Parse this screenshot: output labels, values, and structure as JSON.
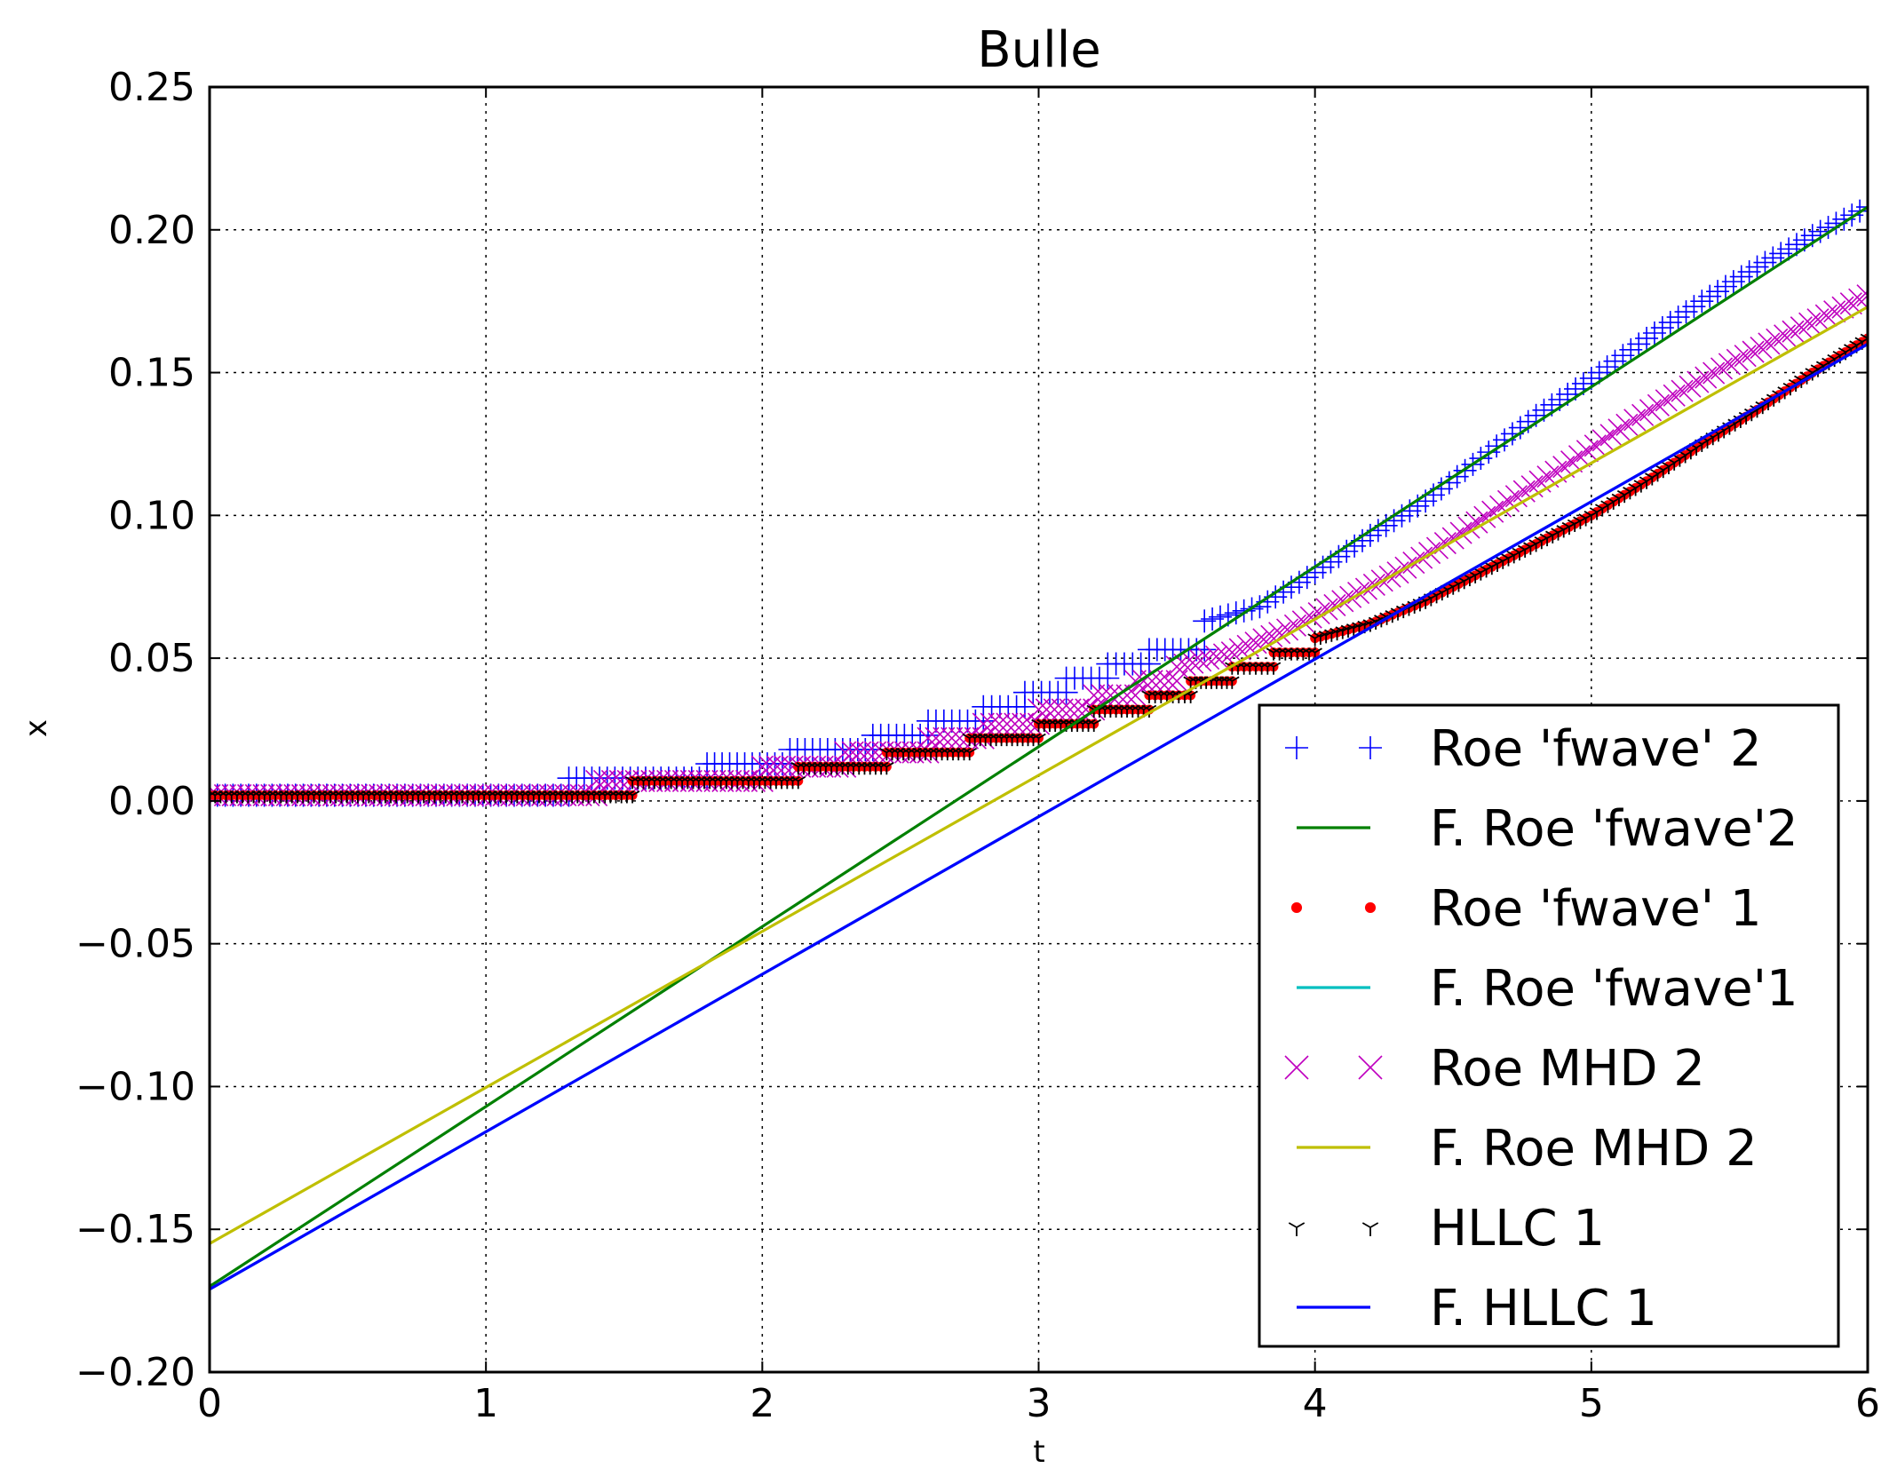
{
  "chart_data": {
    "type": "line",
    "title": "Bulle",
    "xlabel": "t",
    "ylabel": "x",
    "xlim": [
      0,
      6
    ],
    "ylim": [
      -0.2,
      0.25
    ],
    "xticks": [
      "0",
      "1",
      "2",
      "3",
      "4",
      "5",
      "6"
    ],
    "yticks": [
      "0.25",
      "0.20",
      "0.15",
      "0.10",
      "0.05",
      "0.00",
      "−0.05",
      "−0.10",
      "−0.15",
      "−0.20"
    ],
    "grid": true,
    "legend_position": "lower right",
    "series": [
      {
        "name": "Roe 'fwave' 2",
        "kind": "markers",
        "marker": "plus",
        "color": "#0000ff",
        "points": [
          [
            0,
            0.002
          ],
          [
            1.3,
            0.002
          ],
          [
            1.3,
            0.008
          ],
          [
            1.8,
            0.008
          ],
          [
            1.8,
            0.013
          ],
          [
            2.1,
            0.013
          ],
          [
            2.1,
            0.018
          ],
          [
            2.4,
            0.018
          ],
          [
            2.4,
            0.023
          ],
          [
            2.6,
            0.023
          ],
          [
            2.6,
            0.028
          ],
          [
            2.8,
            0.028
          ],
          [
            2.8,
            0.033
          ],
          [
            2.95,
            0.033
          ],
          [
            2.95,
            0.038
          ],
          [
            3.1,
            0.038
          ],
          [
            3.1,
            0.043
          ],
          [
            3.25,
            0.043
          ],
          [
            3.25,
            0.048
          ],
          [
            3.4,
            0.048
          ],
          [
            3.4,
            0.053
          ],
          [
            3.6,
            0.053
          ],
          [
            3.6,
            0.063
          ],
          [
            3.8,
            0.068
          ],
          [
            4.0,
            0.08
          ],
          [
            4.2,
            0.093
          ],
          [
            4.4,
            0.105
          ],
          [
            4.6,
            0.12
          ],
          [
            4.8,
            0.135
          ],
          [
            5.0,
            0.148
          ],
          [
            5.2,
            0.162
          ],
          [
            5.4,
            0.175
          ],
          [
            5.6,
            0.187
          ],
          [
            5.8,
            0.198
          ],
          [
            6.0,
            0.208
          ]
        ]
      },
      {
        "name": "F. Roe 'fwave'2",
        "kind": "line",
        "color": "#008000",
        "x": [
          0,
          6
        ],
        "y": [
          -0.17,
          0.208
        ]
      },
      {
        "name": "Roe 'fwave' 1",
        "kind": "markers",
        "marker": "dot",
        "color": "#ff0000",
        "points": [
          [
            0,
            0.002
          ],
          [
            1.53,
            0.002
          ],
          [
            1.53,
            0.007
          ],
          [
            2.13,
            0.007
          ],
          [
            2.13,
            0.012
          ],
          [
            2.45,
            0.012
          ],
          [
            2.45,
            0.017
          ],
          [
            2.75,
            0.017
          ],
          [
            2.75,
            0.022
          ],
          [
            3.0,
            0.022
          ],
          [
            3.0,
            0.027
          ],
          [
            3.2,
            0.027
          ],
          [
            3.2,
            0.032
          ],
          [
            3.4,
            0.032
          ],
          [
            3.4,
            0.037
          ],
          [
            3.55,
            0.037
          ],
          [
            3.55,
            0.042
          ],
          [
            3.7,
            0.042
          ],
          [
            3.7,
            0.047
          ],
          [
            3.85,
            0.047
          ],
          [
            3.85,
            0.052
          ],
          [
            4.0,
            0.052
          ],
          [
            4.0,
            0.057
          ],
          [
            4.2,
            0.062
          ],
          [
            4.4,
            0.07
          ],
          [
            4.6,
            0.08
          ],
          [
            4.8,
            0.09
          ],
          [
            5.0,
            0.1
          ],
          [
            5.2,
            0.112
          ],
          [
            5.4,
            0.125
          ],
          [
            5.6,
            0.137
          ],
          [
            5.8,
            0.15
          ],
          [
            6.0,
            0.162
          ]
        ]
      },
      {
        "name": "F. Roe 'fwave'1",
        "kind": "line",
        "color": "#00bfbf",
        "x": [
          0,
          6
        ],
        "y": [
          -0.171,
          0.16
        ]
      },
      {
        "name": "Roe MHD 2",
        "kind": "markers",
        "marker": "x",
        "color": "#bf00bf",
        "points": [
          [
            0,
            0.002
          ],
          [
            1.4,
            0.002
          ],
          [
            1.4,
            0.007
          ],
          [
            2.0,
            0.007
          ],
          [
            2.0,
            0.012
          ],
          [
            2.3,
            0.012
          ],
          [
            2.3,
            0.017
          ],
          [
            2.6,
            0.017
          ],
          [
            2.6,
            0.022
          ],
          [
            2.8,
            0.022
          ],
          [
            2.8,
            0.027
          ],
          [
            3.0,
            0.027
          ],
          [
            3.0,
            0.032
          ],
          [
            3.2,
            0.032
          ],
          [
            3.2,
            0.037
          ],
          [
            3.35,
            0.037
          ],
          [
            3.35,
            0.042
          ],
          [
            3.5,
            0.042
          ],
          [
            3.5,
            0.047
          ],
          [
            3.7,
            0.052
          ],
          [
            3.9,
            0.06
          ],
          [
            4.1,
            0.07
          ],
          [
            4.3,
            0.08
          ],
          [
            4.5,
            0.092
          ],
          [
            4.7,
            0.105
          ],
          [
            4.9,
            0.117
          ],
          [
            5.1,
            0.13
          ],
          [
            5.3,
            0.142
          ],
          [
            5.5,
            0.153
          ],
          [
            5.7,
            0.163
          ],
          [
            5.85,
            0.17
          ],
          [
            6.0,
            0.177
          ]
        ]
      },
      {
        "name": "F. Roe MHD 2",
        "kind": "line",
        "color": "#bfbf00",
        "x": [
          0,
          6
        ],
        "y": [
          -0.155,
          0.173
        ]
      },
      {
        "name": "HLLC 1",
        "kind": "markers",
        "marker": "tri_down",
        "color": "#000000",
        "points": [
          [
            0,
            0.002
          ],
          [
            1.53,
            0.002
          ],
          [
            1.53,
            0.007
          ],
          [
            2.13,
            0.007
          ],
          [
            2.13,
            0.012
          ],
          [
            2.45,
            0.012
          ],
          [
            2.45,
            0.017
          ],
          [
            2.75,
            0.017
          ],
          [
            2.75,
            0.022
          ],
          [
            3.0,
            0.022
          ],
          [
            3.0,
            0.027
          ],
          [
            3.2,
            0.027
          ],
          [
            3.2,
            0.032
          ],
          [
            3.4,
            0.032
          ],
          [
            3.4,
            0.037
          ],
          [
            3.55,
            0.037
          ],
          [
            3.55,
            0.042
          ],
          [
            3.7,
            0.042
          ],
          [
            3.7,
            0.047
          ],
          [
            3.85,
            0.047
          ],
          [
            3.85,
            0.052
          ],
          [
            4.0,
            0.052
          ],
          [
            4.0,
            0.057
          ],
          [
            4.2,
            0.062
          ],
          [
            4.4,
            0.07
          ],
          [
            4.6,
            0.08
          ],
          [
            4.8,
            0.09
          ],
          [
            5.0,
            0.1
          ],
          [
            5.2,
            0.112
          ],
          [
            5.4,
            0.125
          ],
          [
            5.6,
            0.137
          ],
          [
            5.8,
            0.15
          ],
          [
            6.0,
            0.162
          ]
        ]
      },
      {
        "name": "F. HLLC 1",
        "kind": "line",
        "color": "#0000ff",
        "x": [
          0,
          6
        ],
        "y": [
          -0.171,
          0.16
        ]
      }
    ]
  }
}
